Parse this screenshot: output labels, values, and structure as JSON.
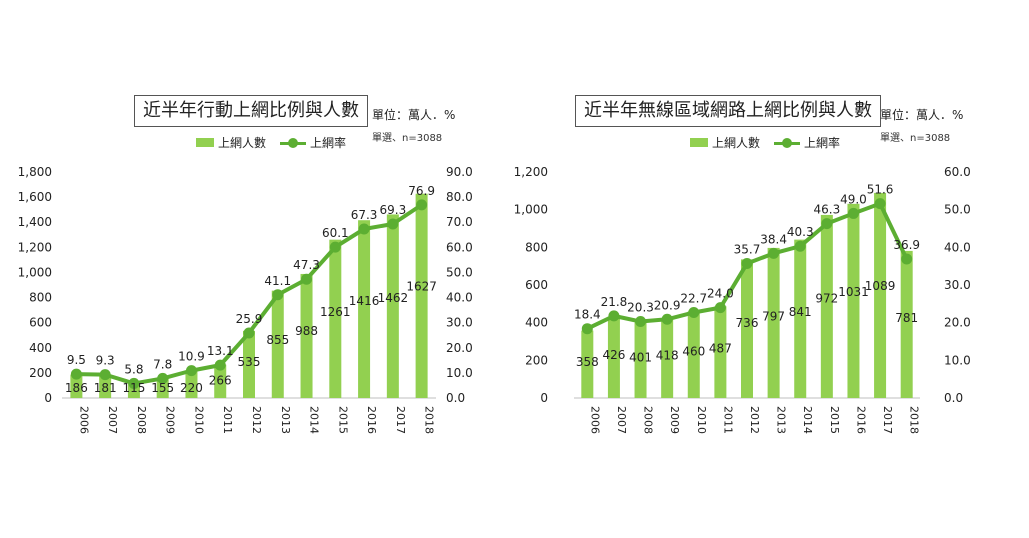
{
  "colors": {
    "bar": "#92d050",
    "line": "#5cae32",
    "axis_text": "#333333"
  },
  "chart_data": [
    {
      "type": "bar",
      "title": "近半年行動上網比例與人數",
      "unit": "單位：萬人．%",
      "sample": "單選、n=3088",
      "legend": {
        "bar": "上網人數",
        "line": "上網率"
      },
      "categories": [
        "2006",
        "2007",
        "2008",
        "2009",
        "2010",
        "2011",
        "2012",
        "2013",
        "2014",
        "2015",
        "2016",
        "2017",
        "2018"
      ],
      "series": [
        {
          "name": "上網人數",
          "type": "bar",
          "axis": "left",
          "values": [
            186,
            181,
            115,
            155,
            220,
            266,
            535,
            855,
            988,
            1261,
            1416,
            1462,
            1627
          ]
        },
        {
          "name": "上網率",
          "type": "line",
          "axis": "right",
          "values": [
            9.5,
            9.3,
            5.8,
            7.8,
            10.9,
            13.1,
            25.9,
            41.1,
            47.3,
            60.1,
            67.3,
            69.3,
            76.9
          ]
        }
      ],
      "y_left": {
        "min": 0,
        "max": 1800,
        "step": 200,
        "ticks": [
          "0",
          "200",
          "400",
          "600",
          "800",
          "1,000",
          "1,200",
          "1,400",
          "1,600",
          "1,800"
        ]
      },
      "y_right": {
        "min": 0,
        "max": 90,
        "step": 10,
        "ticks": [
          "0.0",
          "10.0",
          "20.0",
          "30.0",
          "40.0",
          "50.0",
          "60.0",
          "70.0",
          "80.0",
          "90.0"
        ]
      },
      "grid": false
    },
    {
      "type": "bar",
      "title": "近半年無線區域網路上網比例與人數",
      "unit": "單位：萬人．%",
      "sample": "單選、n=3088",
      "legend": {
        "bar": "上網人數",
        "line": "上網率"
      },
      "categories": [
        "2006",
        "2007",
        "2008",
        "2009",
        "2010",
        "2011",
        "2012",
        "2013",
        "2014",
        "2015",
        "2016",
        "2017",
        "2018"
      ],
      "series": [
        {
          "name": "上網人數",
          "type": "bar",
          "axis": "left",
          "values": [
            358,
            426,
            401,
            418,
            460,
            487,
            736,
            797,
            841,
            972,
            1031,
            1089,
            781
          ]
        },
        {
          "name": "上網率",
          "type": "line",
          "axis": "right",
          "values": [
            18.4,
            21.8,
            20.3,
            20.9,
            22.7,
            24.0,
            35.7,
            38.4,
            40.3,
            46.3,
            49.0,
            51.6,
            36.9
          ]
        }
      ],
      "y_left": {
        "min": 0,
        "max": 1200,
        "step": 200,
        "ticks": [
          "0",
          "200",
          "400",
          "600",
          "800",
          "1,000",
          "1,200"
        ]
      },
      "y_right": {
        "min": 0,
        "max": 60,
        "step": 10,
        "ticks": [
          "0.0",
          "10.0",
          "20.0",
          "30.0",
          "40.0",
          "50.0",
          "60.0"
        ]
      },
      "grid": false
    }
  ]
}
